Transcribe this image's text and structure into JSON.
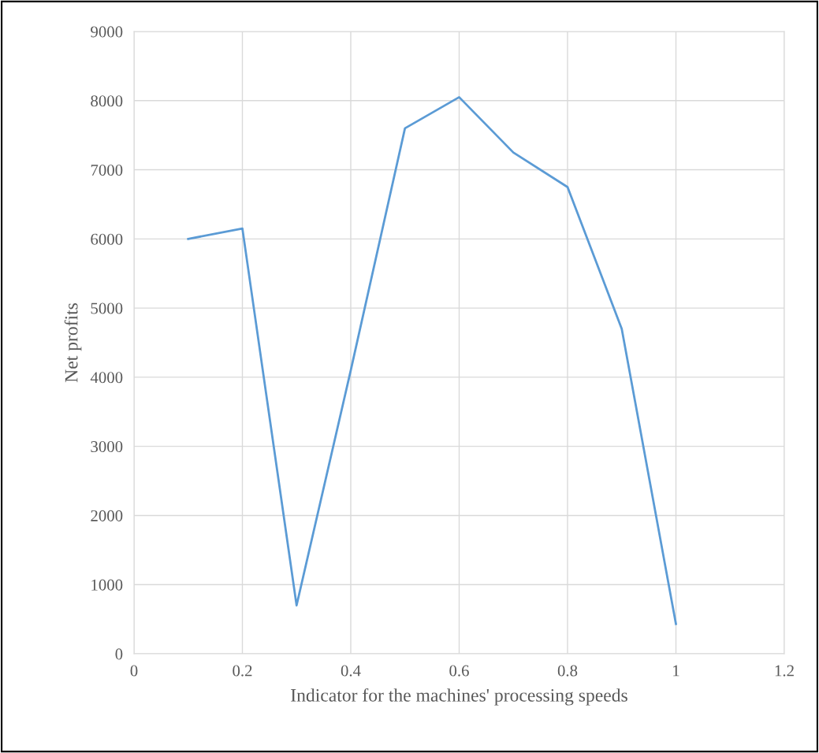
{
  "chart_data": {
    "type": "line",
    "xlabel": "Indicator for the machines' processing speeds",
    "ylabel": "Net profits",
    "x": [
      0.1,
      0.2,
      0.3,
      0.4,
      0.5,
      0.6,
      0.7,
      0.8,
      0.9,
      1.0
    ],
    "series": [
      {
        "color": "#5b9bd5",
        "values": [
          6000,
          6150,
          700,
          4100,
          7600,
          8050,
          7250,
          6750,
          4700,
          430
        ]
      }
    ],
    "xlim": [
      0,
      1.2
    ],
    "xticks": [
      0,
      0.2,
      0.4,
      0.6,
      0.8,
      1,
      1.2
    ],
    "ylim": [
      0,
      9000
    ],
    "yticks": [
      0,
      1000,
      2000,
      3000,
      4000,
      5000,
      6000,
      7000,
      8000,
      9000
    ],
    "grid": true,
    "marker": "none",
    "line_style": "solid"
  }
}
